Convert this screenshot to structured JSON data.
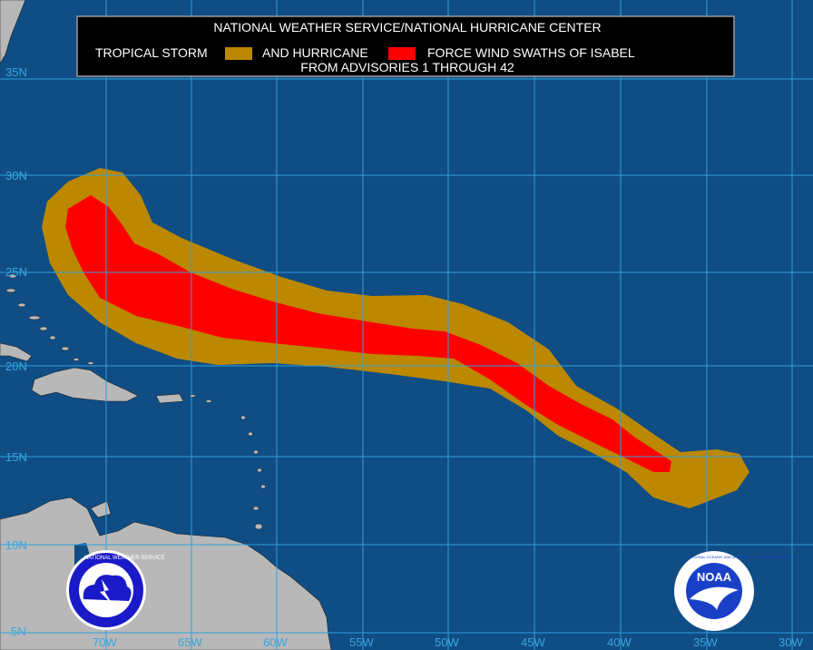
{
  "legend": {
    "line1": "NATIONAL WEATHER SERVICE/NATIONAL HURRICANE CENTER",
    "ts_label": "TROPICAL STORM",
    "and_label": "AND HURRICANE",
    "force_label": "FORCE WIND SWATHS OF ISABEL",
    "line3": "FROM ADVISORIES 1 THROUGH 42",
    "ts_color": "#bb8800",
    "hurricane_color": "#ff0000"
  },
  "map": {
    "ocean_color": "#0f4d84",
    "land_color": "#b8b8b8",
    "grid_color": "#2f9fdc"
  },
  "lat_labels": [
    "35N",
    "30N",
    "25N",
    "20N",
    "15N",
    "10N",
    "5N"
  ],
  "lon_labels": [
    "70W",
    "65W",
    "60W",
    "55W",
    "50W",
    "45W",
    "40W",
    "35W",
    "30W"
  ],
  "logos": {
    "nws_text": "NATIONAL WEATHER SERVICE",
    "noaa_text": "NOAA",
    "noaa_ring_text": "NATIONAL OCEANIC AND ATMOSPHERIC ADMINISTRATION"
  }
}
